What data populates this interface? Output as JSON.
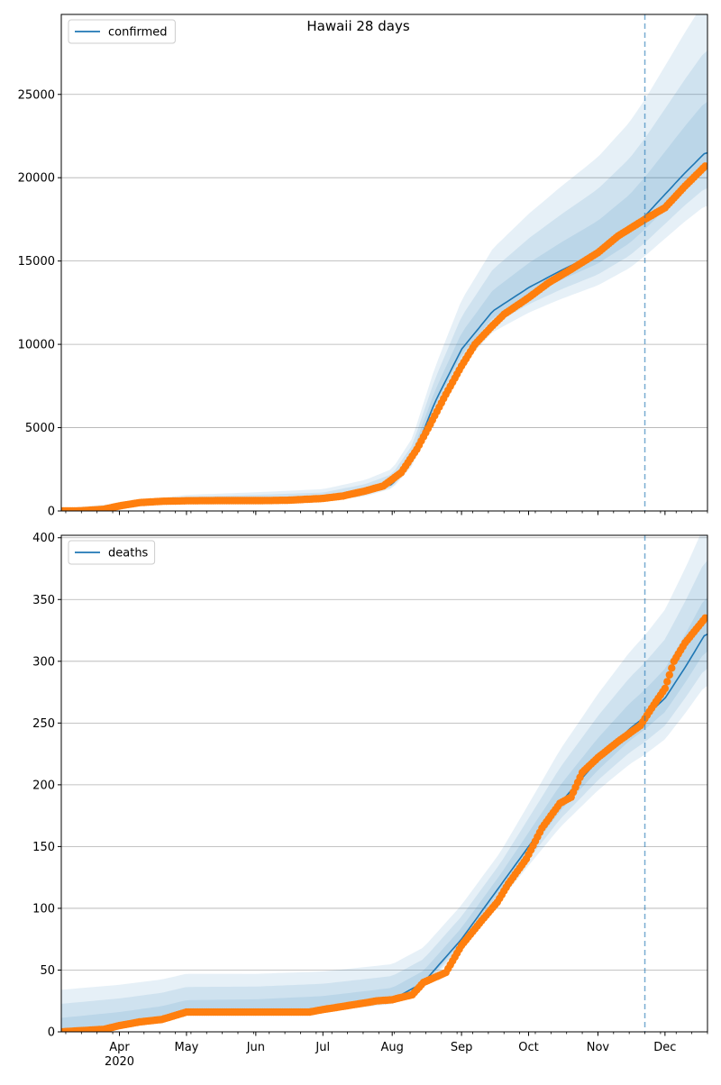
{
  "chart_data": [
    {
      "type": "line",
      "title": "Hawaii 28 days",
      "legend": {
        "placement": "top-left",
        "entries": [
          "confirmed"
        ]
      },
      "series": [
        {
          "name": "confirmed",
          "kind": "model-median-line",
          "color": "#1f77b4",
          "x": [
            "2020-03-06",
            "2020-04-01",
            "2020-05-01",
            "2020-06-01",
            "2020-07-01",
            "2020-07-20",
            "2020-08-01",
            "2020-08-10",
            "2020-08-20",
            "2020-09-01",
            "2020-09-15",
            "2020-10-01",
            "2020-10-15",
            "2020-11-01",
            "2020-11-15",
            "2020-11-22",
            "2020-12-01",
            "2020-12-10",
            "2020-12-19"
          ],
          "values": [
            0,
            250,
            620,
            650,
            700,
            1100,
            1600,
            3100,
            6500,
            9700,
            12000,
            13400,
            14400,
            15500,
            16800,
            17700,
            19000,
            20300,
            21500
          ]
        },
        {
          "name": "",
          "kind": "observed-points",
          "color": "#ff7f0e",
          "x": [
            "2020-03-06",
            "2020-03-15",
            "2020-03-25",
            "2020-04-01",
            "2020-04-10",
            "2020-04-20",
            "2020-05-01",
            "2020-05-15",
            "2020-06-01",
            "2020-06-15",
            "2020-07-01",
            "2020-07-10",
            "2020-07-20",
            "2020-07-28",
            "2020-08-05",
            "2020-08-12",
            "2020-08-18",
            "2020-08-25",
            "2020-09-01",
            "2020-09-07",
            "2020-09-14",
            "2020-09-20",
            "2020-10-01",
            "2020-10-10",
            "2020-10-20",
            "2020-11-01",
            "2020-11-10",
            "2020-11-22",
            "2020-12-01",
            "2020-12-10",
            "2020-12-19"
          ],
          "values": [
            0,
            10,
            100,
            300,
            500,
            580,
            610,
            620,
            620,
            640,
            750,
            900,
            1200,
            1500,
            2300,
            3700,
            5200,
            7000,
            8700,
            10000,
            11000,
            11800,
            12800,
            13700,
            14500,
            15500,
            16500,
            17500,
            18200,
            19500,
            20700
          ]
        }
      ],
      "bands": {
        "count": 3,
        "color": "#1f77b4",
        "outer_upper_end": 29500,
        "outer_lower_end": 18600
      },
      "forecast_marker_date": "2020-11-22",
      "y_ticks": [
        0,
        5000,
        10000,
        15000,
        20000,
        25000
      ],
      "ylim": [
        0,
        29800
      ],
      "xlim": [
        "2020-03-06",
        "2020-12-20"
      ],
      "grid": "y-major"
    },
    {
      "type": "line",
      "title": "",
      "legend": {
        "placement": "top-left",
        "entries": [
          "deaths"
        ]
      },
      "series": [
        {
          "name": "deaths",
          "kind": "model-median-line",
          "color": "#1f77b4",
          "x": [
            "2020-03-06",
            "2020-04-01",
            "2020-04-20",
            "2020-05-01",
            "2020-06-01",
            "2020-07-01",
            "2020-08-01",
            "2020-08-15",
            "2020-09-01",
            "2020-09-15",
            "2020-10-01",
            "2020-10-15",
            "2020-11-01",
            "2020-11-15",
            "2020-11-22",
            "2020-12-01",
            "2020-12-10",
            "2020-12-19"
          ],
          "values": [
            0,
            5,
            10,
            15,
            16,
            19,
            26,
            40,
            75,
            110,
            150,
            185,
            220,
            245,
            255,
            270,
            295,
            322
          ]
        },
        {
          "name": "",
          "kind": "observed-points",
          "color": "#ff7f0e",
          "x": [
            "2020-03-06",
            "2020-03-25",
            "2020-04-01",
            "2020-04-10",
            "2020-04-20",
            "2020-05-01",
            "2020-06-01",
            "2020-06-25",
            "2020-07-01",
            "2020-07-15",
            "2020-07-25",
            "2020-08-01",
            "2020-08-10",
            "2020-08-15",
            "2020-08-25",
            "2020-09-01",
            "2020-09-10",
            "2020-09-17",
            "2020-09-22",
            "2020-09-30",
            "2020-10-07",
            "2020-10-15",
            "2020-10-20",
            "2020-10-25",
            "2020-11-01",
            "2020-11-10",
            "2020-11-20",
            "2020-11-25",
            "2020-12-01",
            "2020-12-05",
            "2020-12-10",
            "2020-12-19"
          ],
          "values": [
            0,
            2,
            5,
            8,
            10,
            16,
            16,
            16,
            18,
            22,
            25,
            26,
            30,
            40,
            48,
            70,
            90,
            105,
            120,
            140,
            165,
            185,
            190,
            210,
            222,
            235,
            248,
            262,
            278,
            300,
            315,
            335
          ]
        }
      ],
      "bands": {
        "count": 3,
        "color": "#1f77b4",
        "outer_upper_end": 400,
        "outer_lower_end": 284
      },
      "forecast_marker_date": "2020-11-22",
      "y_ticks": [
        0,
        50,
        100,
        150,
        200,
        250,
        300,
        350,
        400
      ],
      "ylim": [
        0,
        402
      ],
      "xlim": [
        "2020-03-06",
        "2020-12-20"
      ],
      "grid": "y-major"
    }
  ],
  "x_axis": {
    "month_labels": [
      "Apr",
      "May",
      "Jun",
      "Jul",
      "Aug",
      "Sep",
      "Oct",
      "Nov",
      "Dec"
    ],
    "month_dates": [
      "2020-04-01",
      "2020-05-01",
      "2020-06-01",
      "2020-07-01",
      "2020-08-01",
      "2020-09-01",
      "2020-10-01",
      "2020-11-01",
      "2020-12-01"
    ],
    "year_label": "2020"
  }
}
